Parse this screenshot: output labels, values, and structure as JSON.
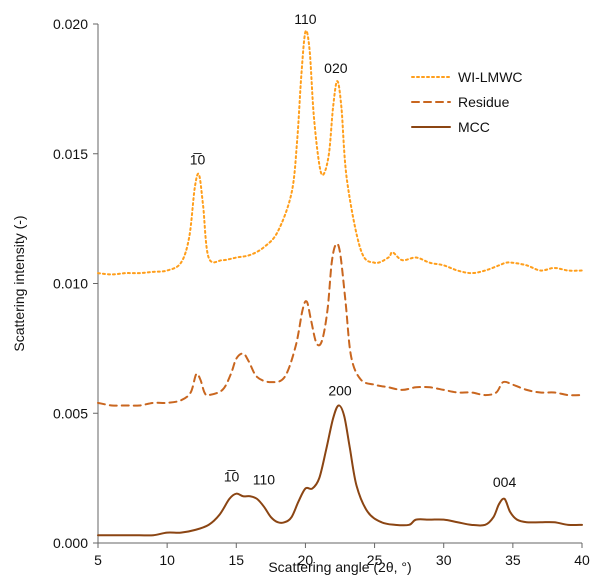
{
  "chart_data": {
    "type": "line",
    "xlabel": "Scattering angle (2θ, °)",
    "ylabel": "Scattering intensity (-)",
    "xlim": [
      5,
      40
    ],
    "ylim": [
      0,
      0.02
    ],
    "xticks": [
      5,
      10,
      15,
      20,
      25,
      30,
      35,
      40
    ],
    "yticks": [
      0.0,
      0.005,
      0.01,
      0.015,
      0.02
    ],
    "xtick_labels": [
      "5",
      "10",
      "15",
      "20",
      "25",
      "30",
      "35",
      "40"
    ],
    "ytick_labels": [
      "0.000",
      "0.005",
      "0.010",
      "0.015",
      "0.020"
    ],
    "legend_position": "top-right",
    "grid": false,
    "series": [
      {
        "name": "WI-LMWC",
        "style": "dotted",
        "color": "#FF9E1B",
        "x": [
          5,
          6,
          7,
          8,
          9,
          10,
          11,
          11.6,
          12.0,
          12.3,
          12.6,
          13.0,
          14,
          15,
          16,
          17,
          18,
          19,
          19.4,
          19.7,
          20.0,
          20.3,
          20.6,
          21.0,
          21.3,
          21.7,
          22.0,
          22.3,
          22.6,
          23.0,
          24,
          25,
          26,
          26.3,
          27,
          28,
          29,
          30,
          31,
          32,
          33,
          34,
          34.5,
          35,
          36,
          37,
          38,
          39,
          40
        ],
        "values": [
          0.0104,
          0.01035,
          0.0104,
          0.0104,
          0.01045,
          0.0105,
          0.0108,
          0.0118,
          0.0137,
          0.0142,
          0.013,
          0.011,
          0.0109,
          0.011,
          0.0111,
          0.0114,
          0.012,
          0.0135,
          0.0155,
          0.018,
          0.0197,
          0.019,
          0.0165,
          0.0146,
          0.0142,
          0.015,
          0.0168,
          0.0178,
          0.0168,
          0.014,
          0.0113,
          0.0108,
          0.011,
          0.0112,
          0.0109,
          0.011,
          0.0108,
          0.0107,
          0.0105,
          0.0104,
          0.0105,
          0.0107,
          0.0108,
          0.0108,
          0.0107,
          0.0105,
          0.0106,
          0.0105,
          0.0105
        ]
      },
      {
        "name": "Residue",
        "style": "dashed",
        "color": "#C9661F",
        "x": [
          5,
          6,
          7,
          8,
          9,
          10,
          11,
          11.7,
          12.1,
          12.4,
          12.7,
          13.0,
          14,
          14.6,
          15.0,
          15.5,
          15.9,
          16.5,
          17.5,
          18.5,
          19.3,
          19.8,
          20.1,
          20.4,
          20.8,
          21.2,
          21.6,
          21.9,
          22.2,
          22.5,
          22.9,
          23.3,
          24,
          25,
          26,
          27,
          28,
          29,
          30,
          31,
          32,
          33,
          33.8,
          34.3,
          35,
          36,
          37,
          38,
          39,
          40
        ],
        "values": [
          0.0054,
          0.0053,
          0.0053,
          0.0053,
          0.0054,
          0.0054,
          0.0055,
          0.0058,
          0.0065,
          0.0063,
          0.0058,
          0.0057,
          0.0059,
          0.0065,
          0.0071,
          0.0073,
          0.007,
          0.0064,
          0.0062,
          0.0064,
          0.0076,
          0.009,
          0.0093,
          0.0086,
          0.0077,
          0.0078,
          0.009,
          0.0108,
          0.0115,
          0.0112,
          0.0093,
          0.0072,
          0.0063,
          0.0061,
          0.006,
          0.0059,
          0.006,
          0.006,
          0.0059,
          0.0058,
          0.0058,
          0.0057,
          0.0058,
          0.0062,
          0.0061,
          0.0059,
          0.0058,
          0.0058,
          0.0057,
          0.0057
        ]
      },
      {
        "name": "MCC",
        "style": "solid",
        "color": "#8B4513",
        "x": [
          5,
          6,
          7,
          8,
          9,
          10,
          11,
          12,
          13,
          13.8,
          14.5,
          15.0,
          15.5,
          16.0,
          16.5,
          17.0,
          17.5,
          18.0,
          18.5,
          19.0,
          19.5,
          20.0,
          20.5,
          21.0,
          21.5,
          22.0,
          22.4,
          22.8,
          23.2,
          23.7,
          24.5,
          25.5,
          26.5,
          27.5,
          28.0,
          29,
          30,
          31,
          32,
          33,
          33.6,
          34.0,
          34.4,
          34.8,
          35.3,
          36,
          37,
          38,
          39,
          40
        ],
        "values": [
          0.0003,
          0.0003,
          0.0003,
          0.0003,
          0.0003,
          0.0004,
          0.0004,
          0.0005,
          0.0007,
          0.0011,
          0.0017,
          0.0019,
          0.0018,
          0.0018,
          0.0017,
          0.0014,
          0.001,
          0.0008,
          0.0008,
          0.001,
          0.0016,
          0.0021,
          0.0021,
          0.0025,
          0.0036,
          0.0048,
          0.0053,
          0.0049,
          0.0037,
          0.0022,
          0.0012,
          0.0008,
          0.0007,
          0.0007,
          0.0009,
          0.0009,
          0.0009,
          0.0008,
          0.0007,
          0.0007,
          0.001,
          0.0015,
          0.0017,
          0.0012,
          0.0009,
          0.0008,
          0.0008,
          0.0008,
          0.0007,
          0.0007
        ]
      }
    ],
    "annotations": [
      {
        "text": "110",
        "x": 20.0,
        "y": 0.0197,
        "dx": 0,
        "dy": -8
      },
      {
        "text": "020",
        "x": 22.2,
        "y": 0.0178,
        "dx": 0,
        "dy": -8
      },
      {
        "text": "1̅0",
        "x": 12.2,
        "y": 0.0142,
        "dx": 0,
        "dy": -10
      },
      {
        "text": "200",
        "x": 22.5,
        "y": 0.0053,
        "dx": 0,
        "dy": -10
      },
      {
        "text": "1̅0",
        "x": 14.8,
        "y": 0.0019,
        "dx": -2,
        "dy": -12
      },
      {
        "text": "110",
        "x": 17.0,
        "y": 0.0018,
        "dx": 0,
        "dy": -12
      },
      {
        "text": "004",
        "x": 34.4,
        "y": 0.0017,
        "dx": 0,
        "dy": -12
      }
    ]
  }
}
